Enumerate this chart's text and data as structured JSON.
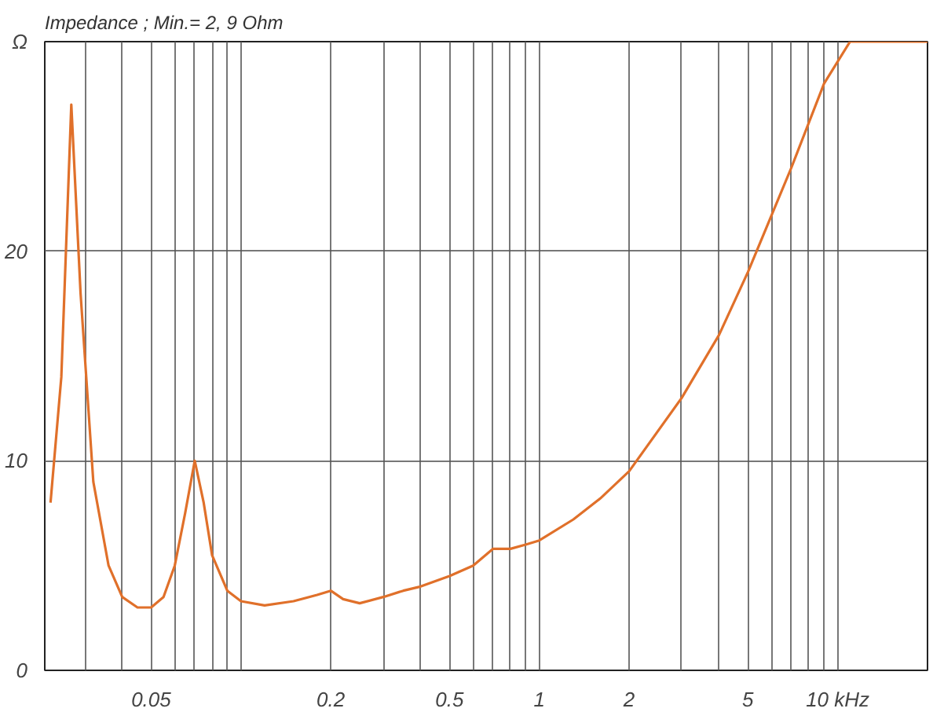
{
  "chart_data": {
    "type": "line",
    "title": "Impedance ; Min.= 2, 9 Ohm",
    "log": "x",
    "xlim": [
      0.022,
      20
    ],
    "ylim": [
      0,
      30
    ],
    "xticks": [
      {
        "value": 0.03,
        "label": null
      },
      {
        "value": 0.04,
        "label": null
      },
      0.05,
      {
        "value": 0.06,
        "label": null
      },
      {
        "value": 0.07,
        "label": null
      },
      {
        "value": 0.08,
        "label": null
      },
      {
        "value": 0.09,
        "label": null
      },
      {
        "value": 0.1,
        "label": null
      },
      0.2,
      {
        "value": 0.3,
        "label": null
      },
      {
        "value": 0.4,
        "label": null
      },
      0.5,
      {
        "value": 0.6,
        "label": null
      },
      {
        "value": 0.7,
        "label": null
      },
      {
        "value": 0.8,
        "label": null
      },
      {
        "value": 0.9,
        "label": null
      },
      1,
      2,
      {
        "value": 3,
        "label": null
      },
      {
        "value": 4,
        "label": null
      },
      5,
      {
        "value": 6,
        "label": null
      },
      {
        "value": 7,
        "label": null
      },
      {
        "value": 8,
        "label": null
      },
      {
        "value": 9,
        "label": null
      },
      {
        "value": 10,
        "label": "10 kHz"
      }
    ],
    "yticks": [
      0,
      10,
      20,
      {
        "value": 30,
        "label": "Ω"
      }
    ],
    "grid": true,
    "series": [
      {
        "color": "#e0702a",
        "x": [
          0.023,
          0.025,
          0.027,
          0.029,
          0.032,
          0.036,
          0.04,
          0.045,
          0.05,
          0.055,
          0.06,
          0.065,
          0.07,
          0.075,
          0.08,
          0.09,
          0.1,
          0.12,
          0.15,
          0.18,
          0.2,
          0.22,
          0.25,
          0.3,
          0.35,
          0.4,
          0.5,
          0.6,
          0.7,
          0.8,
          0.9,
          1,
          1.3,
          1.6,
          2,
          3,
          4,
          5,
          7,
          9,
          11,
          20
        ],
        "values": [
          8,
          14,
          27,
          18,
          9,
          5,
          3.5,
          3,
          3,
          3.5,
          5,
          7.5,
          10,
          8,
          5.5,
          3.8,
          3.3,
          3.1,
          3.3,
          3.6,
          3.8,
          3.4,
          3.2,
          3.5,
          3.8,
          4,
          4.5,
          5,
          5.8,
          5.8,
          6,
          6.2,
          7.2,
          8.2,
          9.5,
          13,
          16,
          19,
          24,
          28,
          30,
          30
        ]
      }
    ]
  }
}
